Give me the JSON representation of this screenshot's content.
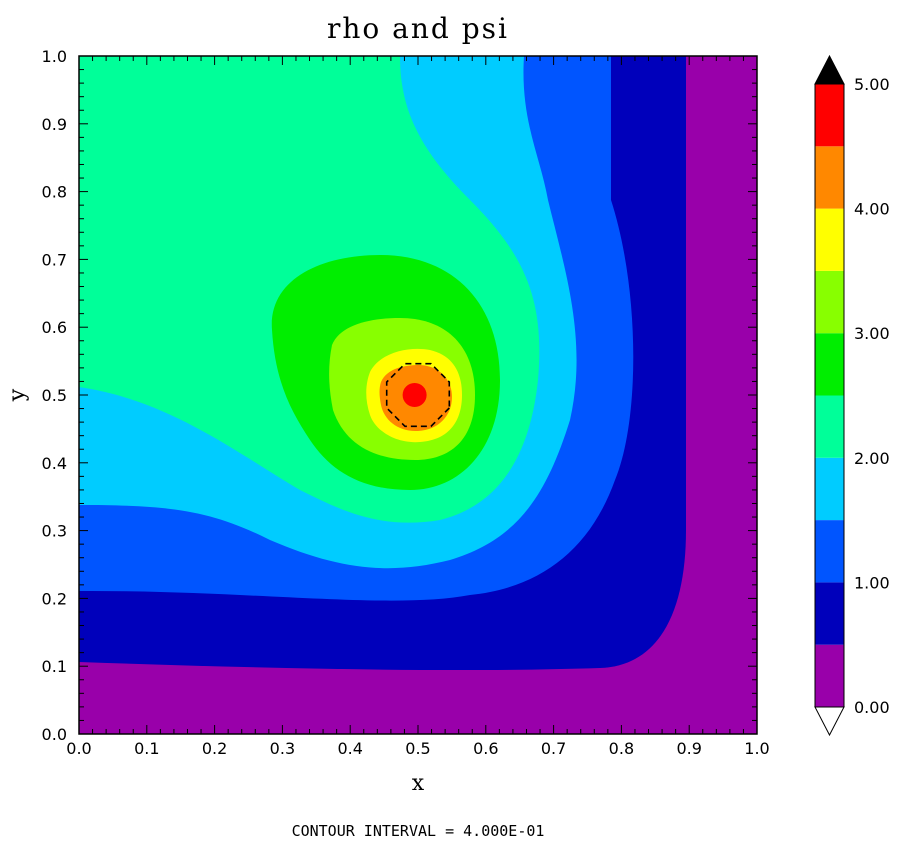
{
  "chart_data": {
    "type": "contour",
    "title": "rho and psi",
    "xlabel": "x",
    "ylabel": "y",
    "xlim": [
      0.0,
      1.0
    ],
    "ylim": [
      0.0,
      1.0
    ],
    "x_ticks": [
      "0.0",
      "0.1",
      "0.2",
      "0.3",
      "0.4",
      "0.5",
      "0.6",
      "0.7",
      "0.8",
      "0.9",
      "1.0"
    ],
    "y_ticks": [
      "0.0",
      "0.1",
      "0.2",
      "0.3",
      "0.4",
      "0.5",
      "0.6",
      "0.7",
      "0.8",
      "0.9",
      "1.0"
    ],
    "levels": [
      0.0,
      0.5,
      1.0,
      1.5,
      2.0,
      2.5,
      3.0,
      3.5,
      4.0,
      4.5,
      5.0
    ],
    "level_colors": [
      "#9900aa",
      "#0000bb",
      "#0055ff",
      "#00ccff",
      "#00ff99",
      "#00ee00",
      "#88ff00",
      "#ffff00",
      "#ff8800",
      "#ff0000"
    ],
    "over_color": "#000000",
    "under_color": "#ffffff",
    "colorbar_labels": [
      "0.00",
      "1.00",
      "2.00",
      "3.00",
      "4.00",
      "5.00"
    ],
    "psi_contour": {
      "center": [
        0.5,
        0.5
      ],
      "radius": 0.05,
      "style": "dashed"
    },
    "grid": false,
    "footer": "CONTOUR INTERVAL = 4.000E-01"
  }
}
